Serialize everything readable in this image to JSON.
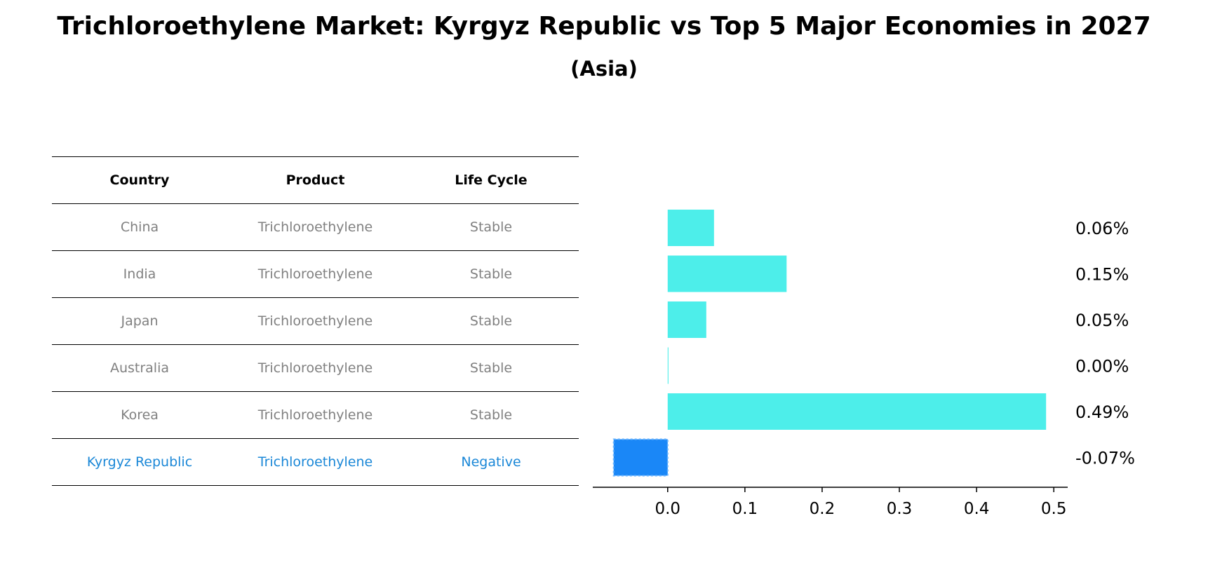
{
  "title": "Trichloroethylene Market: Kyrgyz Republic vs Top 5 Major Economies in 2027",
  "subtitle": "(Asia)",
  "table": {
    "headers": [
      "Country",
      "Product",
      "Life Cycle"
    ],
    "rows": [
      [
        "China",
        "Trichloroethylene",
        "Stable"
      ],
      [
        "India",
        "Trichloroethylene",
        "Stable"
      ],
      [
        "Japan",
        "Trichloroethylene",
        "Stable"
      ],
      [
        "Australia",
        "Trichloroethylene",
        "Stable"
      ],
      [
        "Korea",
        "Trichloroethylene",
        "Stable"
      ],
      [
        "Kyrgyz Republic",
        "Trichloroethylene",
        "Negative"
      ]
    ]
  },
  "chart_data": {
    "type": "bar",
    "orientation": "horizontal",
    "title": "Trichloroethylene Market: Kyrgyz Republic vs Top 5 Major Economies in 2027",
    "subtitle": "(Asia)",
    "categories": [
      "China",
      "India",
      "Japan",
      "Australia",
      "Korea",
      "Kyrgyz Republic"
    ],
    "values": [
      0.06,
      0.154,
      0.05,
      0.001,
      0.49,
      -0.07
    ],
    "value_labels": [
      "0.06%",
      "0.15%",
      "0.05%",
      "0.00%",
      "0.49%",
      "-0.07%"
    ],
    "xlim": [
      -0.097,
      0.518
    ],
    "xticks": [
      0.0,
      0.1,
      0.2,
      0.3,
      0.4,
      0.5
    ],
    "xtick_labels": [
      "0.0",
      "0.1",
      "0.2",
      "0.3",
      "0.4",
      "0.5"
    ],
    "xlabel": "",
    "ylabel": "",
    "grid": false,
    "colors": {
      "positive": "#4deeea",
      "highlight": "#1a87f7",
      "highlight_edge": "#66b3ff"
    }
  }
}
